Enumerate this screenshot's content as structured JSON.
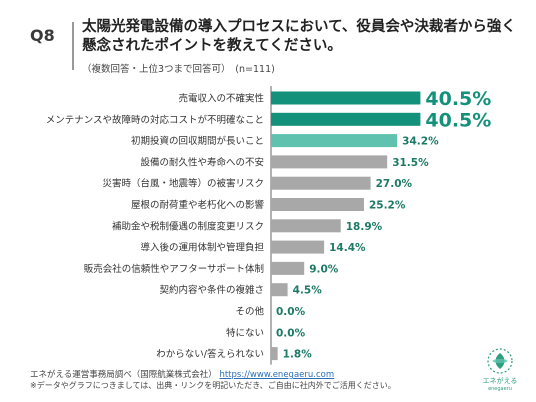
{
  "header": {
    "question_no": "Q8",
    "title": "太陽光発電設備の導入プロセスにおいて、役員会や決裁者から強く懸念されたポイントを教えてください。",
    "subtitle": "（複数回答・上位3つまで回答可）　(n=111)"
  },
  "chart_data": {
    "type": "bar",
    "orientation": "horizontal",
    "title": "",
    "xlabel": "",
    "ylabel": "",
    "xlim": [
      0,
      45
    ],
    "grid": false,
    "legend": false,
    "categories": [
      "売電収入の不確実性",
      "メンテナンスや故障時の対応コストが不明確なこと",
      "初期投資の回収期間が長いこと",
      "設備の耐久性や寿命への不安",
      "災害時（台風・地震等）の被害リスク",
      "屋根の耐荷重や老朽化への影響",
      "補助金や税制優遇の制度変更リスク",
      "導入後の運用体制や管理負担",
      "販売会社の信頼性やアフターサポート体制",
      "契約内容や条件の複雑さ",
      "その他",
      "特にない",
      "わからない/答えられない"
    ],
    "values": [
      40.5,
      40.5,
      34.2,
      31.5,
      27.0,
      25.2,
      18.9,
      14.4,
      9.0,
      4.5,
      0.0,
      0.0,
      1.8
    ],
    "value_labels": [
      "40.5%",
      "40.5%",
      "34.2%",
      "31.5%",
      "27.0%",
      "25.2%",
      "18.9%",
      "14.4%",
      "9.0%",
      "4.5%",
      "0.0%",
      "0.0%",
      "1.8%"
    ],
    "highlight_top": 2,
    "colors": {
      "top": "#14917a",
      "third": "#5ec2ae",
      "rest": "#a8a8a8",
      "top_label": "#14917a",
      "rest_label": "#1d7a66"
    }
  },
  "footer": {
    "source": "エネがえる運営事務局調べ（国際航業株式会社）",
    "source_url": "https://www.enegaeru.com",
    "note": "※データやグラフにつきましては、出典・リンクを明記いただき、ご自由に社内外でご活用ください。"
  },
  "logo": {
    "name": "エネがえる",
    "sub": "enegaeru",
    "icon": "leaf-circle-logo",
    "color": "#2f9d7e"
  }
}
